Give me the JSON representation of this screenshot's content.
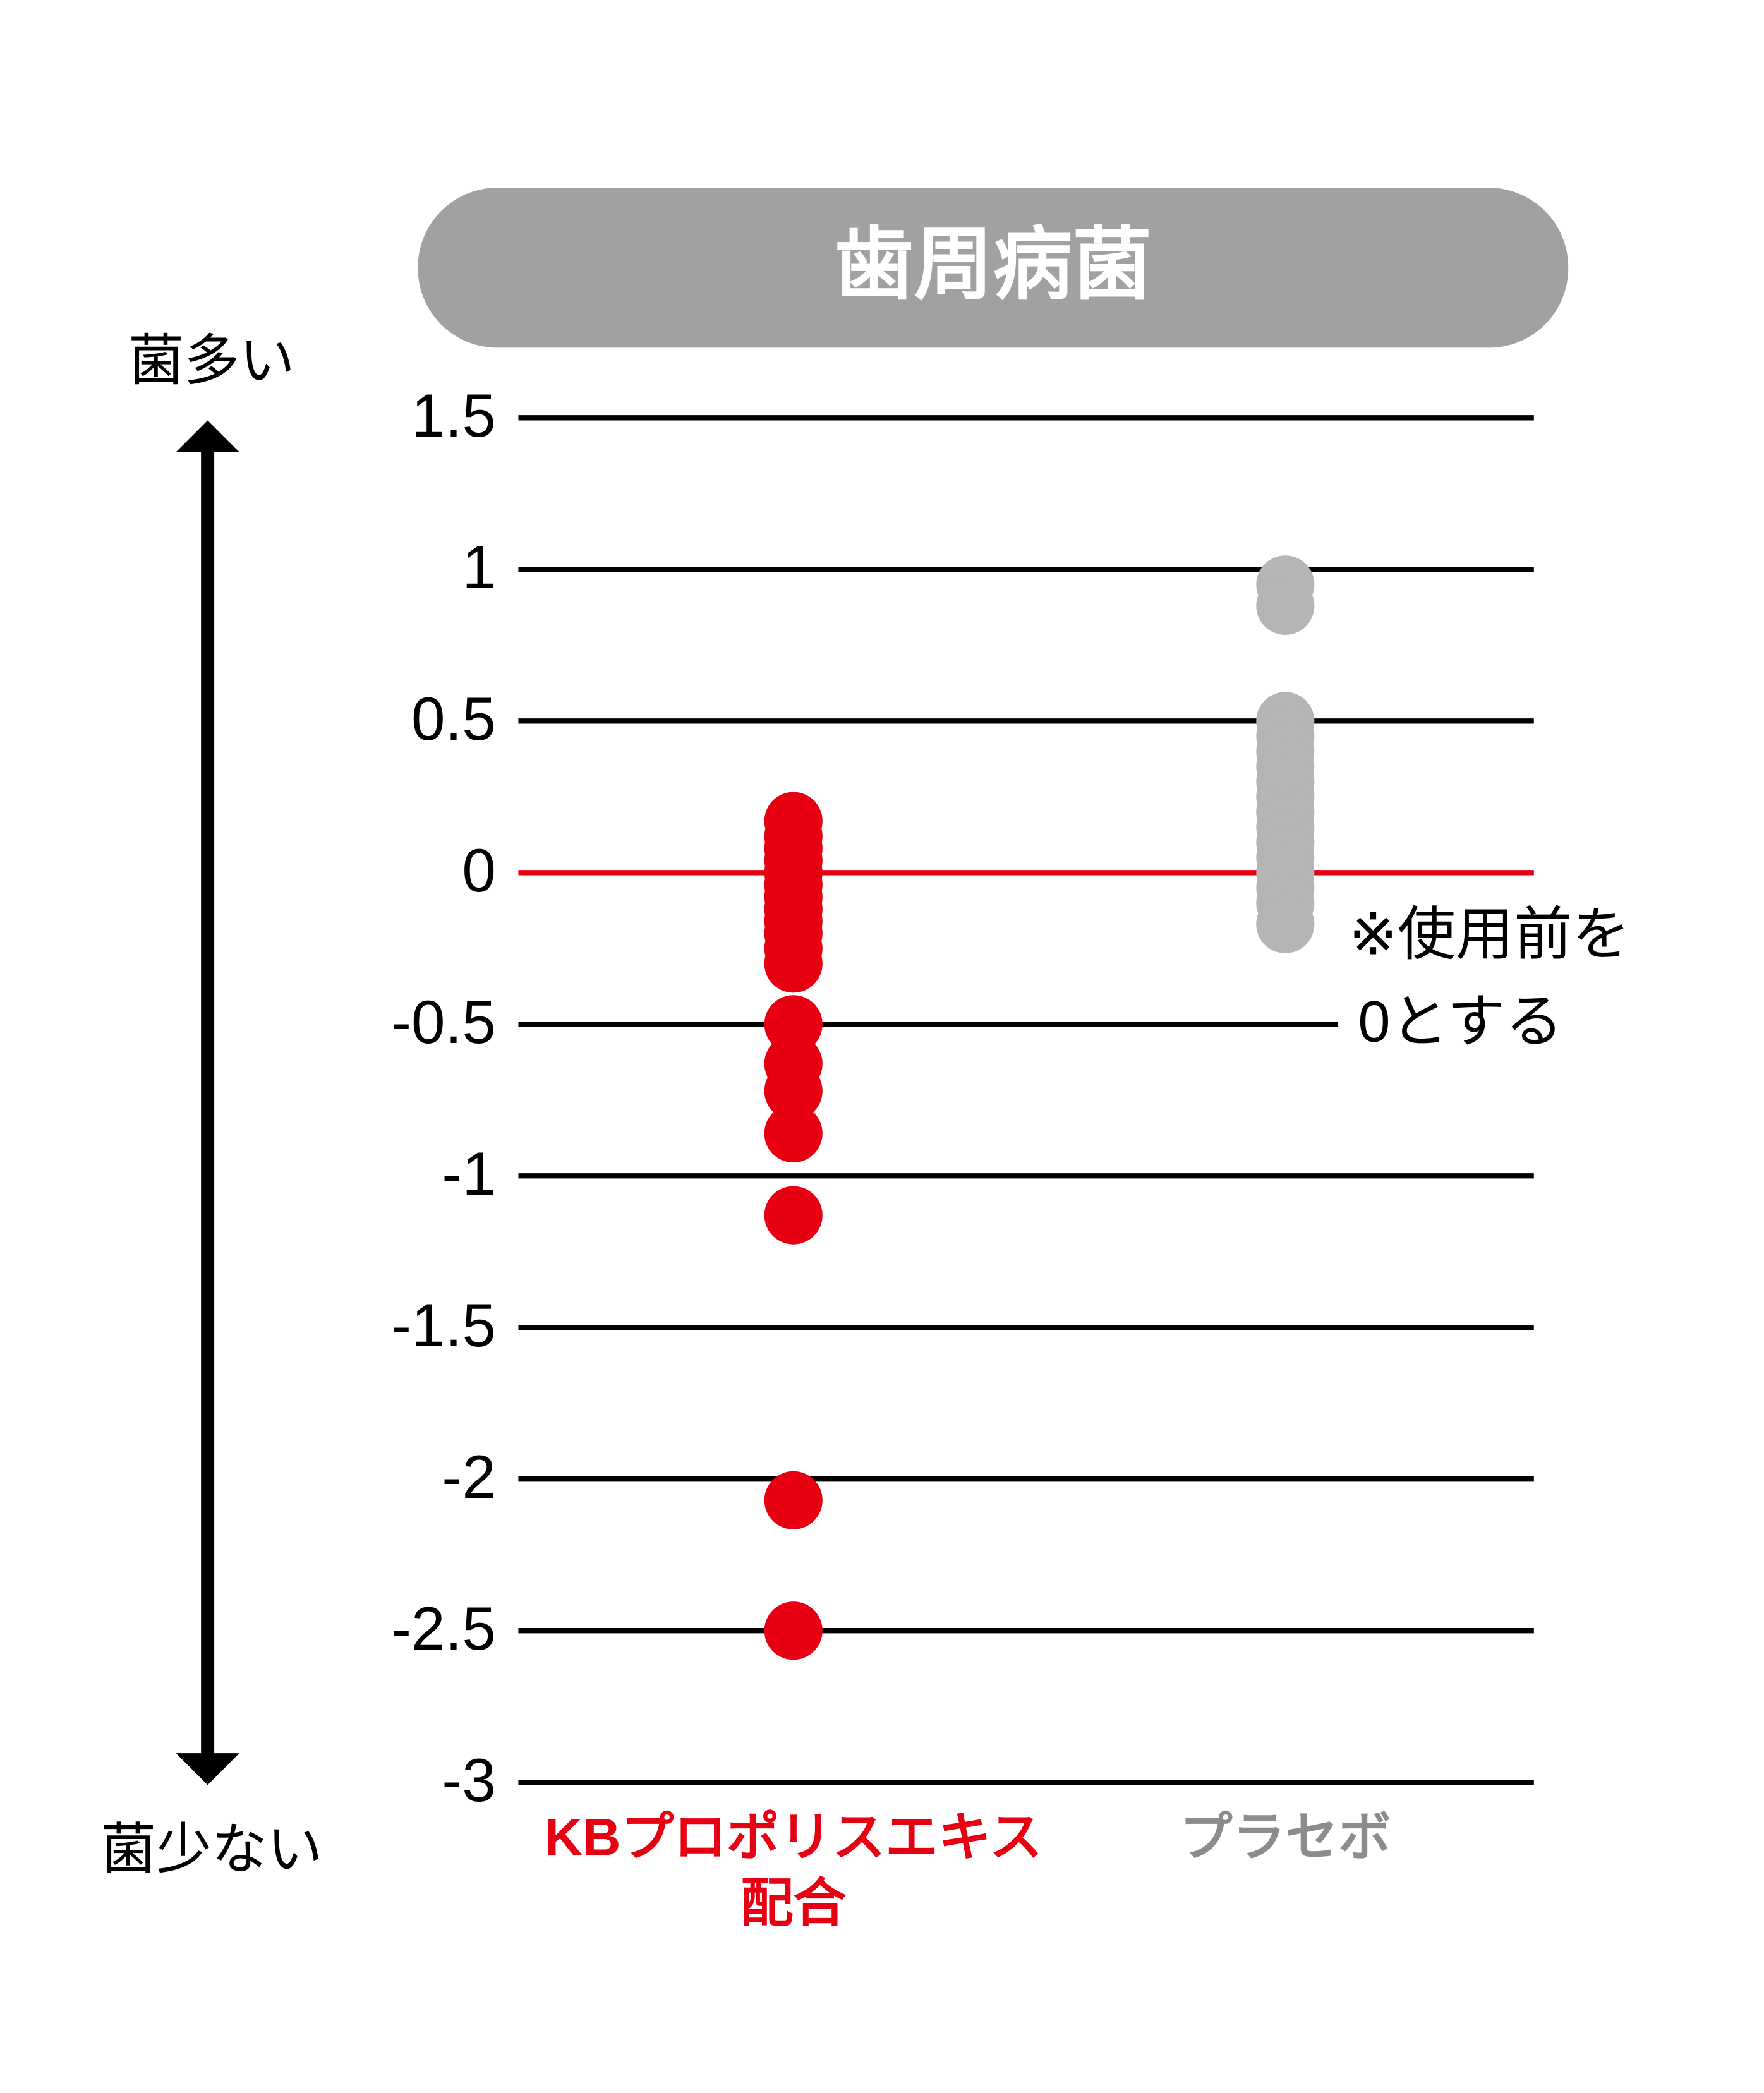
{
  "chart_data": {
    "type": "strip",
    "title": "歯周病菌",
    "y_label_top": "菌多い",
    "y_label_bottom": "菌少ない",
    "annotation": [
      "※使用前を",
      "0とする"
    ],
    "categories": [
      "KBプロポリスエキス配合",
      "プラセボ"
    ],
    "series": [
      {
        "name": "KBプロポリスエキス配合",
        "color": "#e60012",
        "values": [
          0.17,
          0.12,
          0.08,
          0.04,
          0.0,
          -0.04,
          -0.08,
          -0.12,
          -0.16,
          -0.2,
          -0.25,
          -0.3,
          -0.5,
          -0.63,
          -0.72,
          -0.86,
          -1.13,
          -2.07,
          -2.5
        ]
      },
      {
        "name": "プラセボ",
        "color": "#b5b5b5",
        "values": [
          0.95,
          0.88,
          0.5,
          0.45,
          0.4,
          0.35,
          0.3,
          0.25,
          0.2,
          0.15,
          0.1,
          0.05,
          0.0,
          -0.05,
          -0.1,
          -0.17
        ]
      }
    ],
    "category_label_colors": [
      "#e60012",
      "#8c8c8c"
    ],
    "ylim": [
      -3,
      1.5
    ],
    "yticks": [
      1.5,
      1,
      0.5,
      0,
      -0.5,
      -1,
      -1.5,
      -2,
      -2.5,
      -3
    ],
    "grid": true,
    "zero_line_color": "#e60012"
  }
}
